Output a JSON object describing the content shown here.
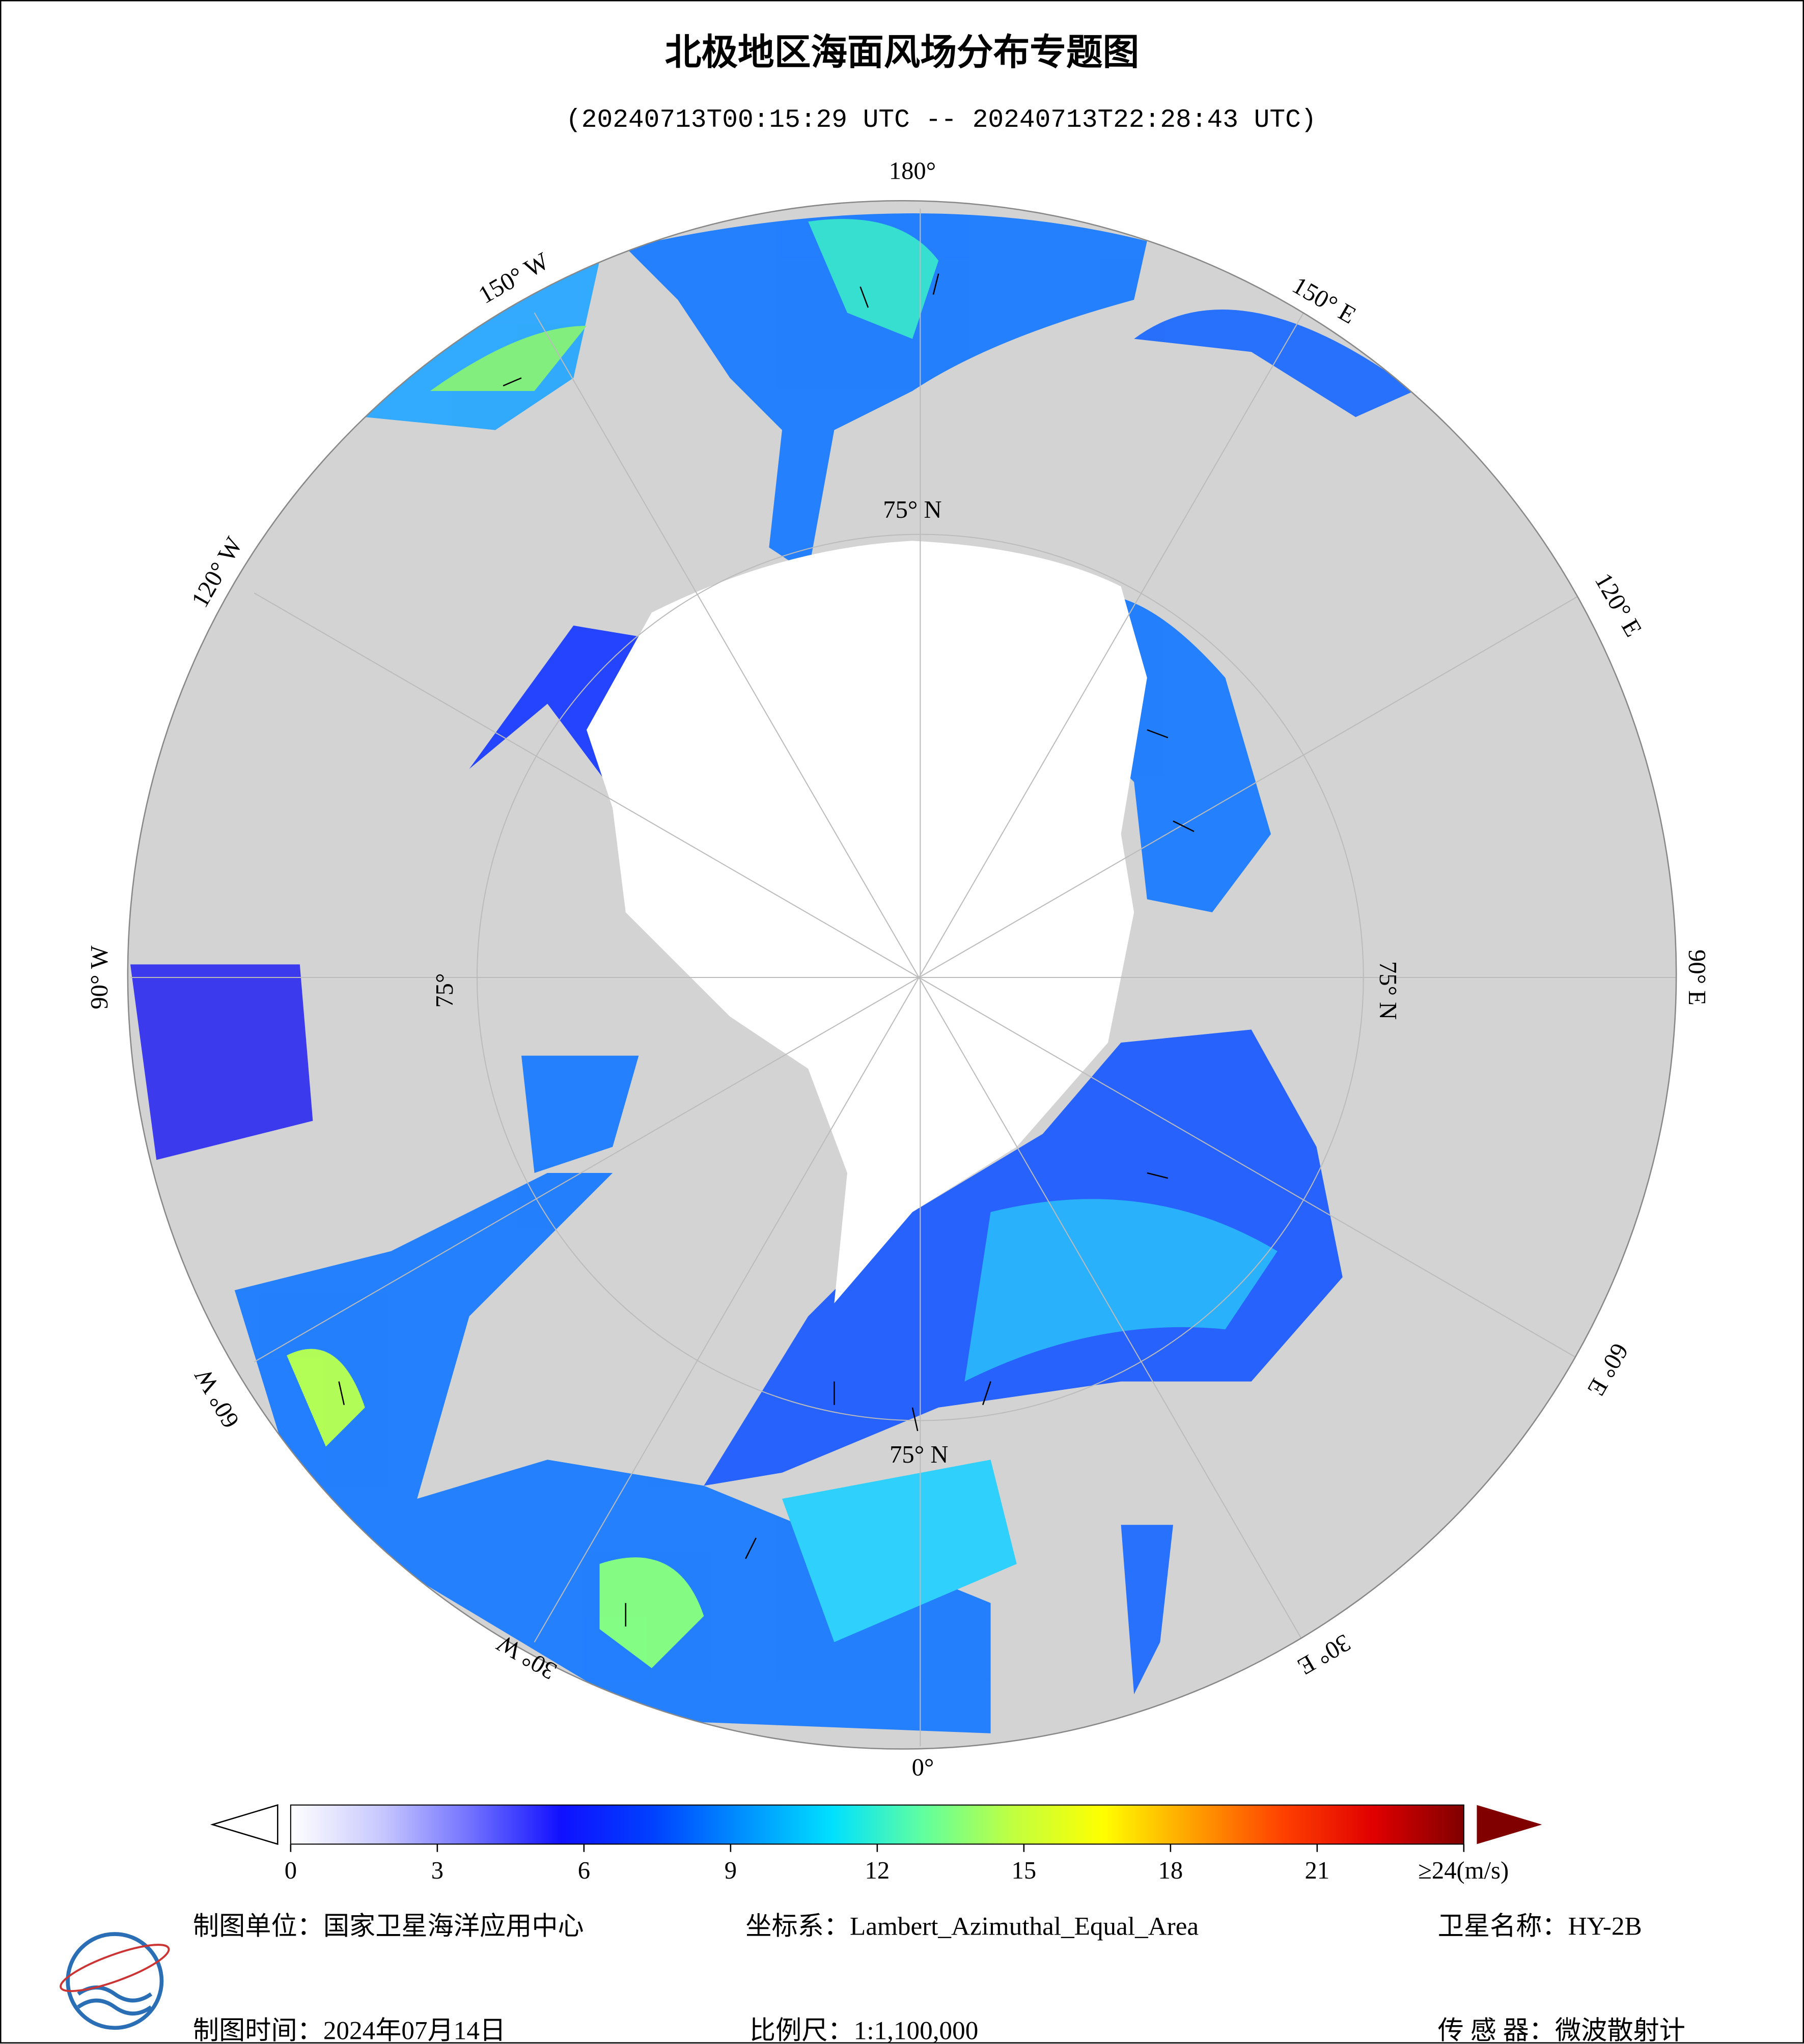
{
  "header": {
    "title": "北极地区海面风场分布专题图",
    "subtitle": "(20240713T00:15:29 UTC -- 20240713T22:28:43 UTC)"
  },
  "map": {
    "lon_labels": [
      "180°",
      "150° E",
      "120° E",
      "90° E",
      "60° E",
      "30° E",
      "0°",
      "30° W",
      "60° W",
      "90° W",
      "120° W",
      "150° W"
    ],
    "lat_labels": [
      "75° N",
      "75° N",
      "75° N",
      "75°"
    ]
  },
  "colorbar": {
    "lim": [
      0,
      24
    ],
    "ticks": [
      0,
      3,
      6,
      9,
      12,
      15,
      18,
      {
        "value": 21,
        "label": "21"
      },
      {
        "value": 24,
        "label": "≥24(m/s)"
      }
    ],
    "colors": [
      "#ffffff",
      "#c8c8ff",
      "#7070ff",
      "#1010ff",
      "#0040ff",
      "#0090ff",
      "#00e0ff",
      "#60ffa0",
      "#c0ff40",
      "#ffff00",
      "#ffa000",
      "#ff4000",
      "#e00000",
      "#800000"
    ]
  },
  "footer": {
    "org": "制图单位：国家卫星海洋应用中心",
    "crs": "坐标系：Lambert_Azimuthal_Equal_Area",
    "satellite": "卫星名称：HY-2B",
    "date": "制图时间：2024年07月14日",
    "scale": "比例尺：1:1,100,000",
    "sensor": "传 感 器：微波散射计"
  }
}
